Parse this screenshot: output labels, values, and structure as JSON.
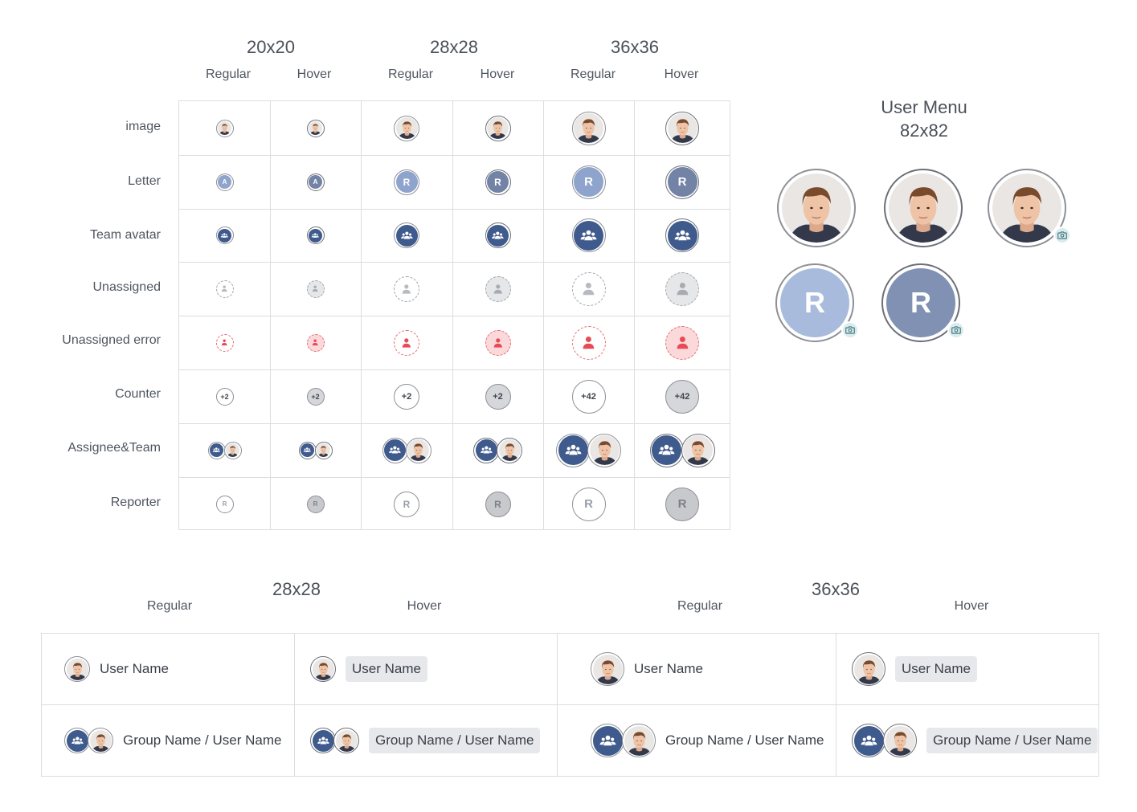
{
  "grid": {
    "sizes": [
      {
        "title": "20x20",
        "regular": "Regular",
        "hover": "Hover"
      },
      {
        "title": "28x28",
        "regular": "Regular",
        "hover": "Hover"
      },
      {
        "title": "36x36",
        "regular": "Regular",
        "hover": "Hover"
      }
    ],
    "rows": [
      "image",
      "Letter",
      "Team avatar",
      "Unassigned",
      "Unassigned error",
      "Counter",
      "Assignee&Team",
      "Reporter"
    ],
    "letters": [
      "A",
      "A",
      "R",
      "R",
      "R",
      "R"
    ],
    "counters": [
      "+2",
      "+2",
      "+2",
      "+2",
      "+42",
      "+42"
    ],
    "reporter_letter": "R"
  },
  "user_menu": {
    "title": "User Menu",
    "size": "82x82",
    "letter": "R"
  },
  "bottom": {
    "sizes": [
      {
        "title": "28x28",
        "regular": "Regular",
        "hover": "Hover"
      },
      {
        "title": "36x36",
        "regular": "Regular",
        "hover": "Hover"
      }
    ],
    "user_name": "User Name",
    "group_user_name": "Group Name / User Name"
  },
  "colors": {
    "letter_regular": "#8ea4cc",
    "letter_hover": "#7283a6",
    "team": "#3f5a8c",
    "error": "#e84b55",
    "menu_letter_regular": "#a9bbdd",
    "menu_letter_hover": "#8091b4"
  }
}
